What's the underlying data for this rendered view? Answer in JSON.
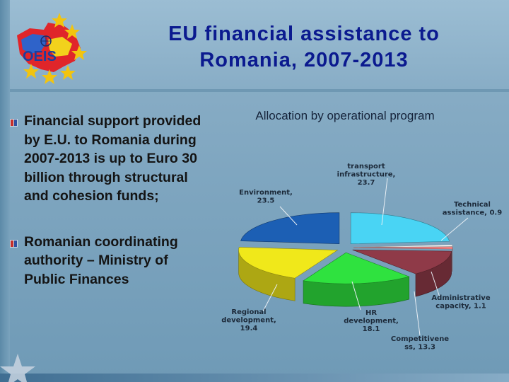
{
  "slide": {
    "title_line1": "EU financial assistance to",
    "title_line2": "Romania, 2007-2013",
    "logo_text": "OEIS"
  },
  "bullets": [
    {
      "text": "Financial support provided by E.U. to Romania during 2007-2013 is up to Euro 30 billion through structural and cohesion funds;"
    },
    {
      "text": "Romanian coordinating authority – Ministry of Public Finances"
    }
  ],
  "colors": {
    "title": "#0b1a8f",
    "transport": "#49d4f4",
    "technical": "#ffffff",
    "administrative": "#ff8a8a",
    "competitiveness": "#8f3a48",
    "hr": "#2fe23f",
    "regional": "#f0e81a",
    "environment": "#1c5fb4"
  },
  "chart_data": {
    "type": "pie",
    "title": "Allocation by operational program",
    "labels_raw": [
      [
        "transport",
        "infrastructure,",
        "23.7"
      ],
      [
        "Technical",
        "assistance, 0.9"
      ],
      [
        "Administrative",
        "capacity, 1.1"
      ],
      [
        "Competitivene",
        "ss, 13.3"
      ],
      [
        "HR",
        "development,",
        "18.1"
      ],
      [
        "Regional",
        "development,",
        "19.4"
      ],
      [
        "Environment,",
        "23.5"
      ]
    ],
    "categories": [
      "transport infrastructure",
      "Technical assistance",
      "Administrative capacity",
      "Competitiveness",
      "HR development",
      "Regional development",
      "Environment"
    ],
    "values": [
      23.7,
      0.9,
      1.1,
      13.3,
      18.1,
      19.4,
      23.5
    ],
    "units": "%",
    "exploded": true,
    "three_d": true
  }
}
